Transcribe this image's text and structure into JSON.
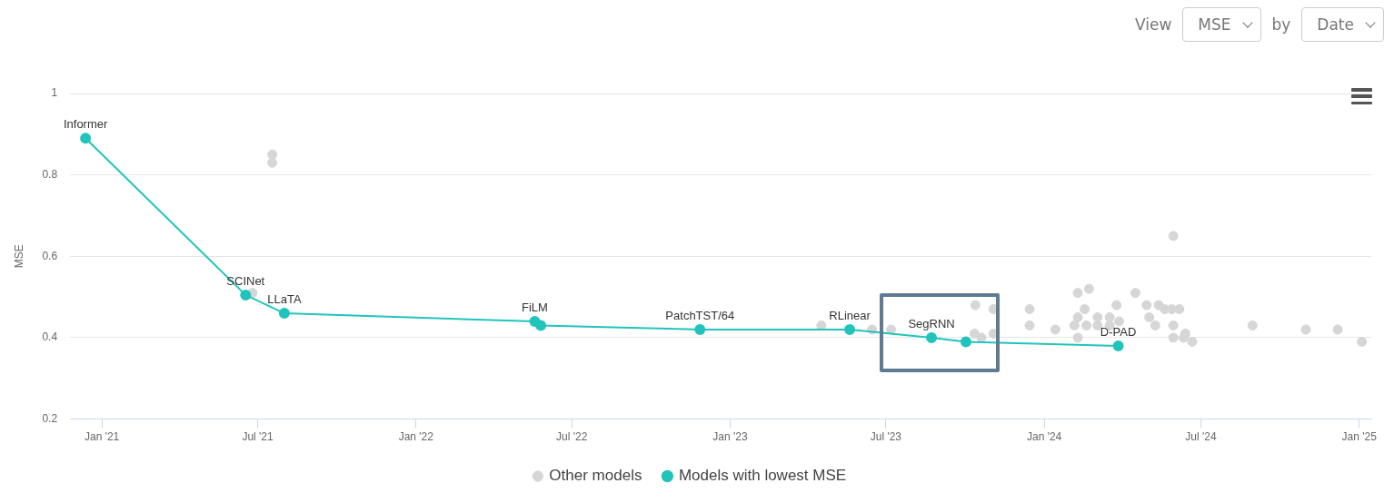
{
  "chart_data": {
    "type": "line",
    "ylabel": "MSE",
    "xlim": [
      "2020-11-25",
      "2025-01-15"
    ],
    "xticks": [
      {
        "value": "2021-01-01",
        "label": "Jan '21"
      },
      {
        "value": "2021-07-01",
        "label": "Jul '21"
      },
      {
        "value": "2022-01-01",
        "label": "Jan '22"
      },
      {
        "value": "2022-07-01",
        "label": "Jul '22"
      },
      {
        "value": "2023-01-01",
        "label": "Jan '23"
      },
      {
        "value": "2023-07-01",
        "label": "Jul '23"
      },
      {
        "value": "2024-01-01",
        "label": "Jan '24"
      },
      {
        "value": "2024-07-01",
        "label": "Jul '24"
      },
      {
        "value": "2025-01-01",
        "label": "Jan '25"
      }
    ],
    "ylim": [
      0.2,
      1
    ],
    "yticks": [
      0.2,
      0.4,
      0.6,
      0.8,
      1
    ],
    "grid": "y",
    "legend": "bottom",
    "series": [
      {
        "name": "Other models",
        "type": "scatter",
        "color": "#d6d6d6",
        "marker": "circle",
        "x": [
          "2021-07-18",
          "2021-07-18",
          "2021-06-25",
          "2022-05-26",
          "2023-04-17",
          "2023-06-15",
          "2023-07-07",
          "2023-10-13",
          "2023-11-03",
          "2023-10-12",
          "2023-10-20",
          "2023-11-03",
          "2023-12-15",
          "2023-12-15",
          "2024-01-14",
          "2024-02-09",
          "2024-02-22",
          "2024-02-09",
          "2024-02-17",
          "2024-02-05",
          "2024-02-19",
          "2024-02-09",
          "2024-03-03",
          "2024-03-03",
          "2024-03-17",
          "2024-03-25",
          "2024-03-17",
          "2024-03-28",
          "2024-04-16",
          "2024-04-29",
          "2024-05-02",
          "2024-05-13",
          "2024-05-20",
          "2024-05-28",
          "2024-06-06",
          "2024-05-09",
          "2024-05-30",
          "2024-05-30",
          "2024-06-13",
          "2024-06-11",
          "2024-06-21",
          "2024-05-30",
          "2024-08-30",
          "2024-10-31",
          "2024-12-07",
          "2025-01-04"
        ],
        "values": [
          0.85,
          0.83,
          0.51,
          null,
          0.43,
          0.42,
          0.42,
          0.48,
          0.47,
          0.41,
          0.4,
          0.41,
          0.47,
          0.43,
          0.42,
          0.51,
          0.52,
          0.45,
          0.47,
          0.43,
          0.43,
          0.4,
          0.45,
          0.43,
          0.43,
          0.48,
          0.45,
          0.44,
          0.51,
          0.48,
          0.45,
          0.48,
          0.47,
          0.47,
          0.47,
          0.43,
          0.43,
          0.4,
          0.41,
          0.4,
          0.39,
          0.65,
          0.43,
          0.42,
          0.42,
          0.39
        ]
      },
      {
        "name": "Models with lowest MSE",
        "type": "line",
        "color": "#21c4bb",
        "marker": "circle",
        "line_style": "solid",
        "x": [
          "2020-12-13",
          "2021-06-17",
          "2021-08-01",
          "2022-05-19",
          "2022-05-26",
          "2022-11-27",
          "2023-05-20",
          "2023-08-23",
          "2023-10-02",
          "2024-03-27"
        ],
        "values": [
          0.89,
          0.505,
          0.46,
          0.44,
          0.43,
          0.42,
          0.42,
          0.4,
          0.39,
          0.38
        ]
      }
    ],
    "annotations": [
      "View",
      "MSE",
      "by",
      "Date",
      {
        "text": "Informer",
        "x": "2020-12-13",
        "y": 0.89
      },
      {
        "text": "SCINet",
        "x": "2021-06-17",
        "y": 0.505
      },
      {
        "text": "LLaTA",
        "x": "2021-08-01",
        "y": 0.46
      },
      {
        "text": "FiLM",
        "x": "2022-05-19",
        "y": 0.44
      },
      {
        "text": "PatchTST/64",
        "x": "2022-11-27",
        "y": 0.42
      },
      {
        "text": "RLinear",
        "x": "2023-05-20",
        "y": 0.42
      },
      {
        "text": "SegRNN",
        "x": "2023-08-23",
        "y": 0.4
      },
      {
        "text": "D-PAD",
        "x": "2024-03-27",
        "y": 0.38
      }
    ]
  }
}
